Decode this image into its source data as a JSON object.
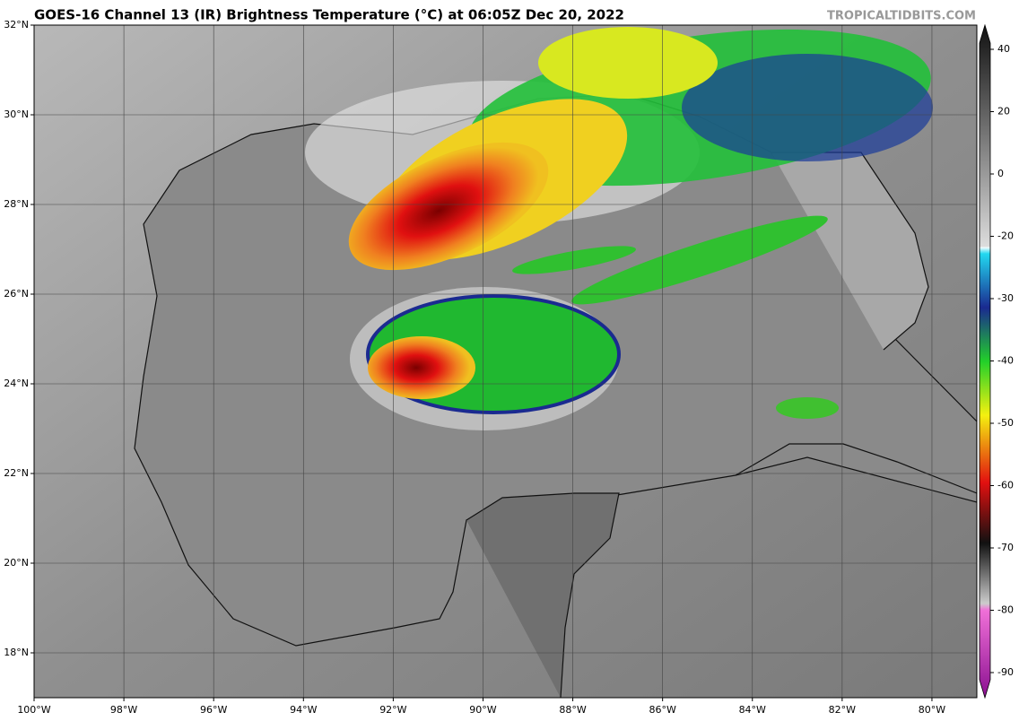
{
  "header": {
    "title": "GOES-16 Channel 13 (IR) Brightness Temperature (°C) at 06:05Z Dec 20, 2022",
    "watermark": "TROPICALTIDBITS.COM"
  },
  "map": {
    "lonlim": [
      -100,
      -79
    ],
    "latlim": [
      17,
      32
    ],
    "lon_ticks": [
      {
        "value": -100,
        "label": "100°W"
      },
      {
        "value": -98,
        "label": "98°W"
      },
      {
        "value": -96,
        "label": "96°W"
      },
      {
        "value": -94,
        "label": "94°W"
      },
      {
        "value": -92,
        "label": "92°W"
      },
      {
        "value": -90,
        "label": "90°W"
      },
      {
        "value": -88,
        "label": "88°W"
      },
      {
        "value": -86,
        "label": "86°W"
      },
      {
        "value": -84,
        "label": "84°W"
      },
      {
        "value": -82,
        "label": "82°W"
      },
      {
        "value": -80,
        "label": "80°W"
      }
    ],
    "lat_ticks": [
      {
        "value": 32,
        "label": "32°N"
      },
      {
        "value": 30,
        "label": "30°N"
      },
      {
        "value": 28,
        "label": "28°N"
      },
      {
        "value": 26,
        "label": "26°N"
      },
      {
        "value": 24,
        "label": "24°N"
      },
      {
        "value": 22,
        "label": "22°N"
      },
      {
        "value": 20,
        "label": "20°N"
      },
      {
        "value": 18,
        "label": "18°N"
      }
    ]
  },
  "colorbar": {
    "ticks": [
      40,
      20,
      0,
      -20,
      -30,
      -40,
      -50,
      -60,
      -70,
      -80,
      -90
    ]
  }
}
